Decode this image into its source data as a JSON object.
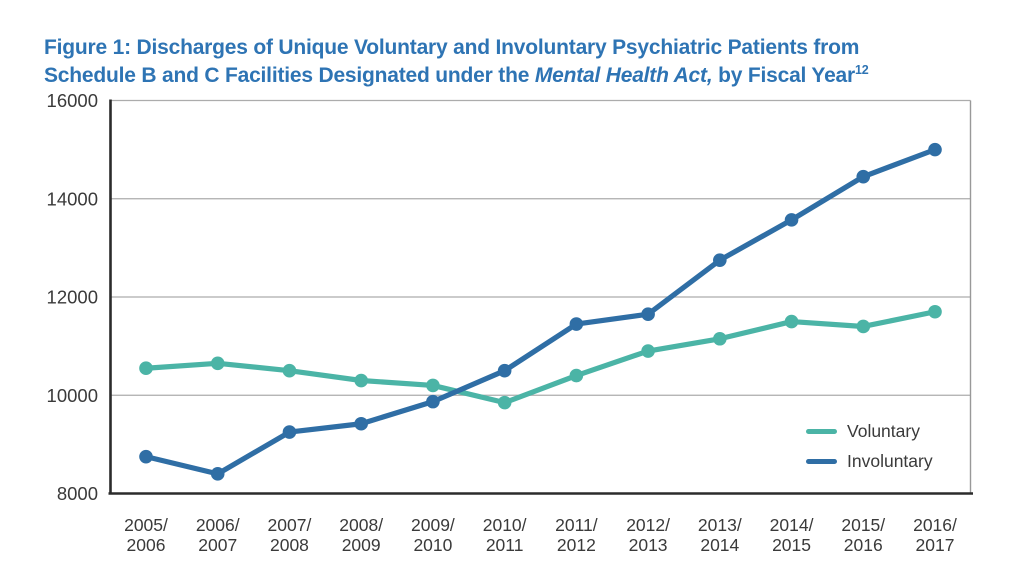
{
  "figure": {
    "title": {
      "line1": "Figure 1: Discharges of Unique Voluntary and Involuntary Psychiatric Patients from",
      "line2_pre": "Schedule B and C Facilities Designated under the ",
      "line2_italic": "Mental Health Act,",
      "line2_post": " by Fiscal Year",
      "superscript": "12",
      "color": "#2e74b4"
    }
  },
  "chart_data": {
    "type": "line",
    "title": "Discharges of Unique Voluntary and Involuntary Psychiatric Patients from Schedule B and C Facilities Designated under the Mental Health Act, by Fiscal Year",
    "categories": [
      "2005/2006",
      "2006/2007",
      "2007/2008",
      "2008/2009",
      "2009/2010",
      "2010/2011",
      "2011/2012",
      "2012/2013",
      "2013/2014",
      "2014/2015",
      "2015/2016",
      "2016/2017"
    ],
    "series": [
      {
        "name": "Voluntary",
        "color": "#4bb4a6",
        "values": [
          10550,
          10650,
          10500,
          10300,
          10200,
          9850,
          10400,
          10900,
          11150,
          11500,
          11400,
          11700
        ]
      },
      {
        "name": "Involuntary",
        "color": "#2f6ea5",
        "values": [
          8750,
          8400,
          9250,
          9420,
          9870,
          10500,
          11450,
          11650,
          12750,
          13570,
          14450,
          15000
        ]
      }
    ],
    "xlabel": "",
    "ylabel": "",
    "ylim": [
      8000,
      16000
    ],
    "yticks": [
      8000,
      10000,
      12000,
      14000,
      16000
    ],
    "grid": true,
    "legend_position": "inside-bottom-right",
    "axis_color": "#2b2b2b",
    "grid_color": "#acacac",
    "plot_border_color": "#999999",
    "tick_label_color": "#3a3a3a"
  }
}
